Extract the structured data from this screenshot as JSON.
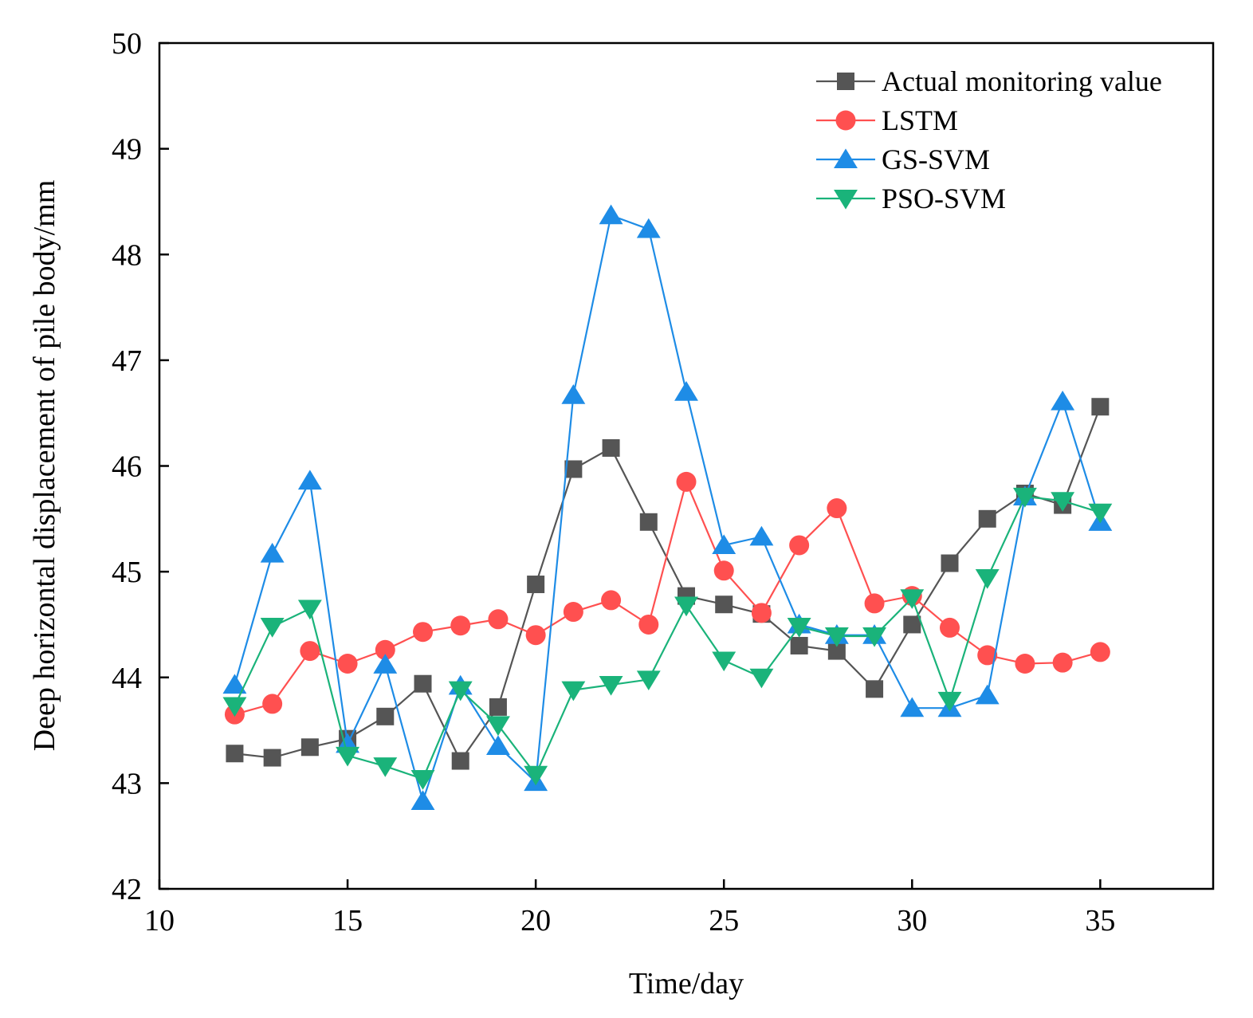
{
  "chart_data": {
    "type": "line",
    "title": "",
    "xlabel": "Time/day",
    "ylabel": "Deep horizontal displacement of pile body/mm",
    "xlim": [
      10,
      38
    ],
    "ylim": [
      42,
      50
    ],
    "xticks": [
      10,
      15,
      20,
      25,
      30,
      35
    ],
    "yticks": [
      42,
      43,
      44,
      45,
      46,
      47,
      48,
      49,
      50
    ],
    "x": [
      12,
      13,
      14,
      15,
      16,
      17,
      18,
      19,
      20,
      21,
      22,
      23,
      24,
      25,
      26,
      27,
      28,
      29,
      30,
      31,
      32,
      33,
      34,
      35
    ],
    "legend_position": "top-right",
    "grid": false,
    "series": [
      {
        "name": "Actual monitoring value",
        "marker": "square",
        "color": "#555555",
        "values": [
          43.28,
          43.24,
          43.34,
          43.42,
          43.63,
          43.94,
          43.21,
          43.72,
          44.88,
          45.97,
          46.17,
          45.47,
          44.77,
          44.69,
          44.6,
          44.3,
          44.25,
          43.89,
          44.5,
          45.08,
          45.5,
          45.74,
          45.63,
          46.56
        ]
      },
      {
        "name": "LSTM",
        "marker": "circle",
        "color": "#ff5050",
        "values": [
          43.65,
          43.75,
          44.25,
          44.13,
          44.26,
          44.43,
          44.49,
          44.55,
          44.4,
          44.62,
          44.73,
          44.5,
          45.85,
          45.01,
          44.61,
          45.25,
          45.6,
          44.7,
          44.77,
          44.47,
          44.21,
          44.13,
          44.14,
          44.24
        ]
      },
      {
        "name": "GS-SVM",
        "marker": "triangle-up",
        "color": "#1e8ce6",
        "values": [
          43.93,
          45.17,
          45.86,
          43.37,
          44.12,
          42.83,
          43.92,
          43.35,
          43.01,
          46.67,
          48.37,
          48.24,
          46.7,
          45.25,
          45.33,
          44.5,
          44.4,
          44.4,
          43.71,
          43.71,
          43.83,
          45.71,
          46.61,
          45.47
        ]
      },
      {
        "name": "PSO-SVM",
        "marker": "triangle-down",
        "color": "#1ab37a",
        "values": [
          43.73,
          44.48,
          44.65,
          43.26,
          43.16,
          43.04,
          43.88,
          43.55,
          43.08,
          43.88,
          43.93,
          43.98,
          44.68,
          44.16,
          44.0,
          44.48,
          44.39,
          44.39,
          44.75,
          43.78,
          44.94,
          45.71,
          45.67,
          45.56
        ]
      }
    ]
  }
}
